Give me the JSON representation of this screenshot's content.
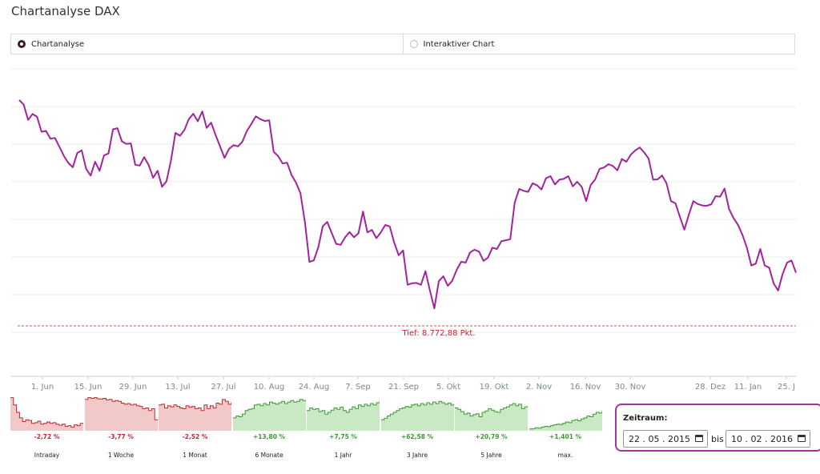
{
  "page": {
    "title": "Chartanalyse DAX"
  },
  "tabs": [
    {
      "label": "Chartanalyse",
      "selected": true
    },
    {
      "label": "Interaktiver Chart",
      "selected": false
    }
  ],
  "colors": {
    "line": "#a3239c",
    "low_line": "#d9534f",
    "negative": "#c4262e",
    "positive": "#3a9a2e",
    "negative_fill": "#f2c9c9",
    "positive_fill": "#c9e8c4",
    "zeitraum_border": "#a0359a"
  },
  "chart_data": {
    "type": "line",
    "title": "",
    "x_start": "22.05.2015",
    "x_end": "10.02.2016",
    "x_tick_labels": [
      "1. Jun",
      "15. Jun",
      "29. Jun",
      "13. Jul",
      "27. Jul",
      "10. Aug",
      "24. Aug",
      "7. Sep",
      "21. Sep",
      "5. Okt",
      "19. Okt",
      "2. Nov",
      "16. Nov",
      "30. Nov",
      "28. Dez",
      "11. Jan",
      "25. J"
    ],
    "ylim": [
      8000,
      12300
    ],
    "grid": true,
    "y_tick_labels_visible": false,
    "low_annotation": {
      "label": "Tief: 8.772,88 Pkt.",
      "value": 8772.88
    },
    "series": [
      {
        "values": [
          11864,
          11800,
          11586,
          11669,
          11629,
          11420,
          11432,
          11323,
          11334,
          11211,
          11084,
          10984,
          10924,
          11123,
          11161,
          10901,
          10807,
          11001,
          10874,
          11090,
          11116,
          11455,
          11470,
          11287,
          11250,
          11258,
          10958,
          10947,
          11066,
          10954,
          10777,
          10874,
          10651,
          10730,
          11020,
          11404,
          11364,
          11446,
          11597,
          11672,
          11566,
          11704,
          11475,
          11547,
          11373,
          11213,
          11055,
          11180,
          11233,
          11216,
          11282,
          11431,
          11530,
          11636,
          11597,
          11571,
          11580,
          11139,
          11080,
          10978,
          10988,
          10815,
          10710,
          10560,
          10154,
          9600,
          9622,
          9805,
          10100,
          10159,
          10005,
          9853,
          9839,
          9944,
          10018,
          9945,
          10002,
          10305,
          10012,
          10048,
          9932,
          10015,
          10116,
          10096,
          9870,
          9693,
          9760,
          9280,
          9301,
          9306,
          9280,
          9470,
          9200,
          8950,
          9330,
          9400,
          9266,
          9335,
          9488,
          9602,
          9590,
          9732,
          9770,
          9745,
          9615,
          9660,
          9800,
          9780,
          9890,
          9903,
          9918,
          10432,
          10620,
          10595,
          10580,
          10700,
          10672,
          10613,
          10770,
          10800,
          10683,
          10750,
          10761,
          10800,
          10657,
          10720,
          10650,
          10450,
          10675,
          10750,
          10900,
          10920,
          10966,
          10942,
          10880,
          11040,
          11000,
          11100,
          11160,
          11200,
          11130,
          11045,
          10750,
          10755,
          10810,
          10700,
          10450,
          10420,
          10230,
          10050,
          10260,
          10450,
          10410,
          10390,
          10385,
          10405,
          10520,
          10513,
          10625,
          10342,
          10214,
          10120,
          9980,
          9800,
          9550,
          9575,
          9780,
          9550,
          9520,
          9300,
          9200,
          9430,
          9590,
          9620,
          9450
        ]
      }
    ]
  },
  "thumbnails": [
    {
      "pct": "-2,72 %",
      "label": "Intraday",
      "trend": "negative",
      "values": [
        0.9,
        0.7,
        0.5,
        0.35,
        0.25,
        0.3,
        0.28,
        0.2,
        0.22,
        0.26,
        0.18,
        0.2,
        0.24,
        0.2,
        0.22,
        0.18,
        0.15,
        0.18,
        0.12,
        0.14,
        0.1,
        0.16,
        0.14,
        0.2,
        0.22
      ]
    },
    {
      "pct": "-3,77 %",
      "label": "1 Woche",
      "trend": "negative",
      "values": [
        0.85,
        0.9,
        0.88,
        0.9,
        0.87,
        0.86,
        0.88,
        0.84,
        0.85,
        0.8,
        0.82,
        0.8,
        0.75,
        0.72,
        0.74,
        0.7,
        0.72,
        0.68,
        0.66,
        0.6,
        0.62,
        0.55,
        0.6,
        0.3,
        0.28
      ]
    },
    {
      "pct": "-2,52 %",
      "label": "1 Monat",
      "trend": "negative",
      "values": [
        0.7,
        0.72,
        0.62,
        0.68,
        0.65,
        0.7,
        0.66,
        0.62,
        0.6,
        0.68,
        0.64,
        0.66,
        0.6,
        0.62,
        0.55,
        0.7,
        0.6,
        0.68,
        0.62,
        0.75,
        0.72,
        0.85,
        0.8,
        0.72,
        0.78
      ]
    },
    {
      "pct": "+13,80 %",
      "label": "6 Monate",
      "trend": "positive",
      "values": [
        0.35,
        0.4,
        0.38,
        0.45,
        0.55,
        0.58,
        0.6,
        0.7,
        0.72,
        0.68,
        0.74,
        0.7,
        0.78,
        0.75,
        0.72,
        0.76,
        0.8,
        0.74,
        0.78,
        0.82,
        0.78,
        0.8,
        0.85,
        0.82,
        0.84
      ]
    },
    {
      "pct": "+7,75 %",
      "label": "1 Jahr",
      "trend": "positive",
      "values": [
        0.55,
        0.62,
        0.58,
        0.6,
        0.52,
        0.55,
        0.45,
        0.5,
        0.56,
        0.62,
        0.58,
        0.64,
        0.55,
        0.5,
        0.58,
        0.65,
        0.6,
        0.7,
        0.66,
        0.72,
        0.68,
        0.74,
        0.7,
        0.76,
        0.8
      ]
    },
    {
      "pct": "+62,58 %",
      "label": "3 Jahre",
      "trend": "positive",
      "values": [
        0.3,
        0.34,
        0.4,
        0.45,
        0.5,
        0.55,
        0.6,
        0.62,
        0.66,
        0.64,
        0.7,
        0.72,
        0.68,
        0.74,
        0.7,
        0.76,
        0.72,
        0.78,
        0.74,
        0.8,
        0.76,
        0.72,
        0.75,
        0.7,
        0.73
      ]
    },
    {
      "pct": "+20,79 %",
      "label": "5 Jahre",
      "trend": "positive",
      "values": [
        0.62,
        0.58,
        0.52,
        0.45,
        0.48,
        0.4,
        0.44,
        0.46,
        0.38,
        0.5,
        0.54,
        0.6,
        0.56,
        0.52,
        0.5,
        0.58,
        0.62,
        0.65,
        0.7,
        0.74,
        0.68,
        0.72,
        0.6,
        0.65,
        0.68
      ]
    },
    {
      "pct": "+1.401 %",
      "label": "max.",
      "trend": "positive",
      "values": [
        0.05,
        0.06,
        0.08,
        0.07,
        0.1,
        0.12,
        0.11,
        0.14,
        0.16,
        0.18,
        0.17,
        0.2,
        0.24,
        0.22,
        0.28,
        0.3,
        0.27,
        0.32,
        0.35,
        0.4,
        0.38,
        0.45,
        0.5,
        0.48,
        0.55
      ]
    }
  ],
  "zeitraum": {
    "label": "Zeitraum:",
    "from": "22 . 05 . 2015",
    "bis": "bis",
    "to": "10 . 02 . 2016"
  }
}
